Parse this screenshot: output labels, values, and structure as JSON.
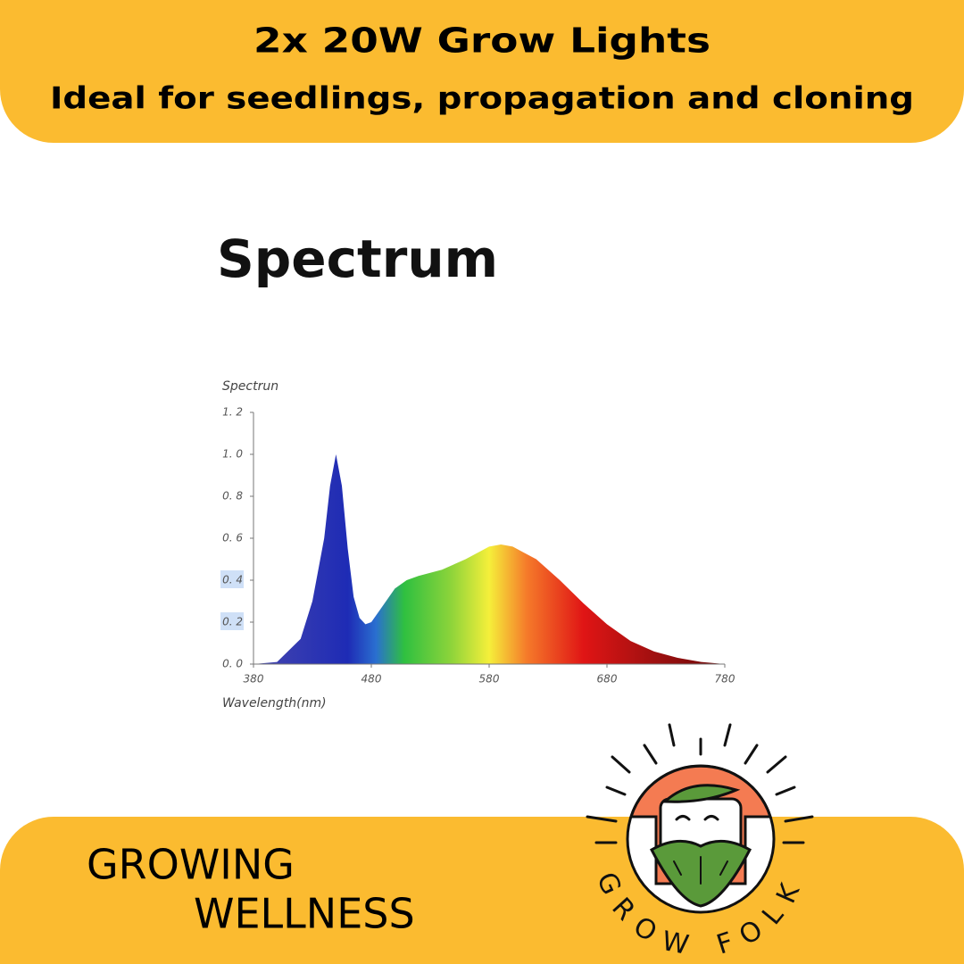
{
  "header": {
    "title": "2x 20W Grow Lights",
    "subtitle": "Ideal for seedlings, propagation and cloning"
  },
  "chart_data": {
    "type": "area",
    "title": "Spectrum",
    "y_label": "Spectrun",
    "x_label": "Wavelength(nm)",
    "x": [
      380,
      400,
      420,
      430,
      440,
      445,
      450,
      455,
      460,
      465,
      470,
      475,
      480,
      490,
      500,
      510,
      520,
      540,
      560,
      580,
      590,
      600,
      610,
      620,
      640,
      660,
      680,
      700,
      720,
      740,
      760,
      780
    ],
    "values": [
      0,
      0.01,
      0.12,
      0.3,
      0.6,
      0.85,
      1.0,
      0.85,
      0.55,
      0.32,
      0.22,
      0.19,
      0.2,
      0.28,
      0.36,
      0.4,
      0.42,
      0.45,
      0.5,
      0.56,
      0.57,
      0.56,
      0.53,
      0.5,
      0.4,
      0.29,
      0.19,
      0.11,
      0.06,
      0.03,
      0.01,
      0
    ],
    "xlim": [
      380,
      780
    ],
    "ylim": [
      0,
      1.2
    ],
    "xticks": [
      380,
      480,
      580,
      680,
      780
    ],
    "yticks": [
      {
        "value": 0,
        "label": "0. 0"
      },
      {
        "value": 0.2,
        "label": "0. 2"
      },
      {
        "value": 0.4,
        "label": "0. 4"
      },
      {
        "value": 0.6,
        "label": "0. 6"
      },
      {
        "value": 0.8,
        "label": "0. 8"
      },
      {
        "value": 1.0,
        "label": "1. 0"
      },
      {
        "value": 1.2,
        "label": "1. 2"
      }
    ]
  },
  "footer": {
    "tagline": [
      "GROWING",
      "WELLNESS"
    ],
    "logo": "GROW FOLK"
  }
}
